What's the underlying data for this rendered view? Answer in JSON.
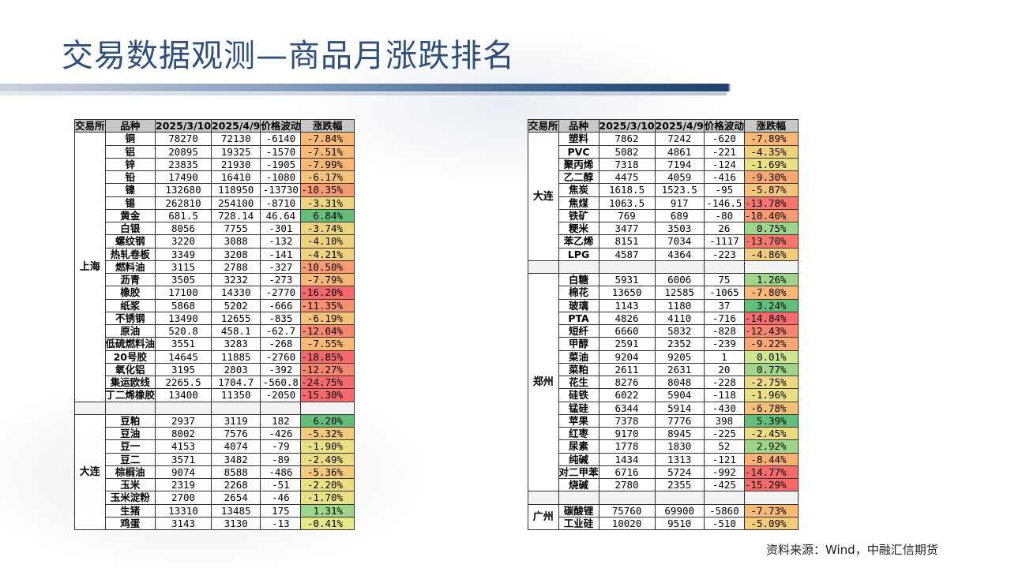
{
  "page_title": "交易数据观测—商品月涨跌排名",
  "source": "资料来源：Wind，中融汇信期货",
  "headers": [
    "交易所",
    "品种",
    "2025/3/10",
    "2025/4/9",
    "价格波动",
    "涨跌幅"
  ],
  "left_groups": [
    {
      "exchange": "上海",
      "rows": [
        [
          "铜",
          "78270",
          "72130",
          "-6140",
          "-7.84%"
        ],
        [
          "铝",
          "20895",
          "19325",
          "-1570",
          "-7.51%"
        ],
        [
          "锌",
          "23835",
          "21930",
          "-1905",
          "-7.99%"
        ],
        [
          "铅",
          "17490",
          "16410",
          "-1080",
          "-6.17%"
        ],
        [
          "镍",
          "132680",
          "118950",
          "-13730",
          "-10.35%"
        ],
        [
          "锡",
          "262810",
          "254100",
          "-8710",
          "-3.31%"
        ],
        [
          "黄金",
          "681.5",
          "728.14",
          "46.64",
          "6.84%"
        ],
        [
          "白银",
          "8056",
          "7755",
          "-301",
          "-3.74%"
        ],
        [
          "螺纹钢",
          "3220",
          "3088",
          "-132",
          "-4.10%"
        ],
        [
          "热轧卷板",
          "3349",
          "3208",
          "-141",
          "-4.21%"
        ],
        [
          "燃料油",
          "3115",
          "2788",
          "-327",
          "-10.50%"
        ],
        [
          "沥青",
          "3505",
          "3232",
          "-273",
          "-7.79%"
        ],
        [
          "橡胶",
          "17100",
          "14330",
          "-2770",
          "-16.20%"
        ],
        [
          "纸浆",
          "5868",
          "5202",
          "-666",
          "-11.35%"
        ],
        [
          "不锈钢",
          "13490",
          "12655",
          "-835",
          "-6.19%"
        ],
        [
          "原油",
          "520.8",
          "458.1",
          "-62.7",
          "-12.04%"
        ],
        [
          "低硫燃料油",
          "3551",
          "3283",
          "-268",
          "-7.55%"
        ],
        [
          "20号胶",
          "14645",
          "11885",
          "-2760",
          "-18.85%"
        ],
        [
          "氧化铝",
          "3195",
          "2803",
          "-392",
          "-12.27%"
        ],
        [
          "集运欧线",
          "2265.5",
          "1704.7",
          "-560.8",
          "-24.75%"
        ],
        [
          "丁二烯橡胶",
          "13400",
          "11350",
          "-2050",
          "-15.30%"
        ]
      ]
    },
    {
      "exchange": "",
      "blank": true,
      "rows": [
        [
          "",
          "",
          "",
          "",
          ""
        ]
      ]
    },
    {
      "exchange": "大连",
      "rows": [
        [
          "豆粕",
          "2937",
          "3119",
          "182",
          "6.20%"
        ],
        [
          "豆油",
          "8002",
          "7576",
          "-426",
          "-5.32%"
        ],
        [
          "豆一",
          "4153",
          "4074",
          "-79",
          "-1.90%"
        ],
        [
          "豆二",
          "3571",
          "3482",
          "-89",
          "-2.49%"
        ],
        [
          "棕榈油",
          "9074",
          "8588",
          "-486",
          "-5.36%"
        ],
        [
          "玉米",
          "2319",
          "2268",
          "-51",
          "-2.20%"
        ],
        [
          "玉米淀粉",
          "2700",
          "2654",
          "-46",
          "-1.70%"
        ],
        [
          "生猪",
          "13310",
          "13485",
          "175",
          "1.31%"
        ],
        [
          "鸡蛋",
          "3143",
          "3130",
          "-13",
          "-0.41%"
        ]
      ]
    }
  ],
  "right_groups": [
    {
      "exchange": "大连",
      "rows": [
        [
          "塑料",
          "7862",
          "7242",
          "-620",
          "-7.89%"
        ],
        [
          "PVC",
          "5082",
          "4861",
          "-221",
          "-4.35%"
        ],
        [
          "聚丙烯",
          "7318",
          "7194",
          "-124",
          "-1.69%"
        ],
        [
          "乙二醇",
          "4475",
          "4059",
          "-416",
          "-9.30%"
        ],
        [
          "焦炭",
          "1618.5",
          "1523.5",
          "-95",
          "-5.87%"
        ],
        [
          "焦煤",
          "1063.5",
          "917",
          "-146.5",
          "-13.78%"
        ],
        [
          "铁矿",
          "769",
          "689",
          "-80",
          "-10.40%"
        ],
        [
          "粳米",
          "3477",
          "3503",
          "26",
          "0.75%"
        ],
        [
          "苯乙烯",
          "8151",
          "7034",
          "-1117",
          "-13.70%"
        ],
        [
          "LPG",
          "4587",
          "4364",
          "-223",
          "-4.86%"
        ]
      ]
    },
    {
      "exchange": "",
      "blank": true,
      "rows": [
        [
          "",
          "",
          "",
          "",
          ""
        ]
      ]
    },
    {
      "exchange": "郑州",
      "rows": [
        [
          "白糖",
          "5931",
          "6006",
          "75",
          "1.26%"
        ],
        [
          "棉花",
          "13650",
          "12585",
          "-1065",
          "-7.80%"
        ],
        [
          "玻璃",
          "1143",
          "1180",
          "37",
          "3.24%"
        ],
        [
          "PTA",
          "4826",
          "4110",
          "-716",
          "-14.84%"
        ],
        [
          "短纤",
          "6660",
          "5832",
          "-828",
          "-12.43%"
        ],
        [
          "甲醇",
          "2591",
          "2352",
          "-239",
          "-9.22%"
        ],
        [
          "菜油",
          "9204",
          "9205",
          "1",
          "0.01%"
        ],
        [
          "菜粕",
          "2611",
          "2631",
          "20",
          "0.77%"
        ],
        [
          "花生",
          "8276",
          "8048",
          "-228",
          "-2.75%"
        ],
        [
          "硅铁",
          "6022",
          "5904",
          "-118",
          "-1.96%"
        ],
        [
          "锰硅",
          "6344",
          "5914",
          "-430",
          "-6.78%"
        ],
        [
          "苹果",
          "7378",
          "7776",
          "398",
          "5.39%"
        ],
        [
          "红枣",
          "9170",
          "8945",
          "-225",
          "-2.45%"
        ],
        [
          "尿素",
          "1778",
          "1830",
          "52",
          "2.92%"
        ],
        [
          "纯碱",
          "1434",
          "1313",
          "-121",
          "-8.44%"
        ],
        [
          "对二甲苯",
          "6716",
          "5724",
          "-992",
          "-14.77%"
        ],
        [
          "烧碱",
          "2780",
          "2355",
          "-425",
          "-15.29%"
        ]
      ]
    },
    {
      "exchange": "",
      "blank": true,
      "rows": [
        [
          "",
          "",
          "",
          "",
          ""
        ]
      ]
    },
    {
      "exchange": "广州",
      "rows": [
        [
          "碳酸锂",
          "75760",
          "69900",
          "-5860",
          "-7.73%"
        ],
        [
          "工业硅",
          "10020",
          "9510",
          "-510",
          "-5.09%"
        ]
      ]
    }
  ]
}
